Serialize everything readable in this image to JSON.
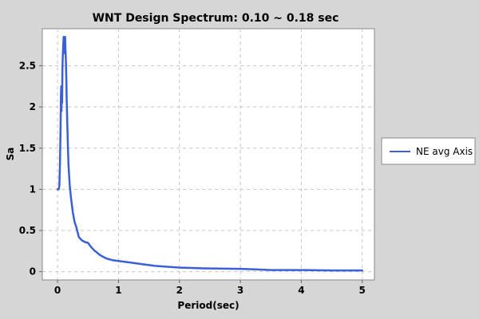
{
  "chart_data": {
    "type": "line",
    "title": "WNT Design Spectrum: 0.10 ~ 0.18 sec",
    "xlabel": "Period(sec)",
    "ylabel": "Sa",
    "xlim": [
      -0.25,
      5.2
    ],
    "ylim": [
      -0.1,
      2.95
    ],
    "xticks": [
      {
        "value": 0,
        "label": "0"
      },
      {
        "value": 1,
        "label": "1"
      },
      {
        "value": 2,
        "label": "2"
      },
      {
        "value": 3,
        "label": "3"
      },
      {
        "value": 4,
        "label": "4"
      },
      {
        "value": 5,
        "label": "5"
      }
    ],
    "yticks": [
      {
        "value": 0,
        "label": "0"
      },
      {
        "value": 0.5,
        "label": "0.5"
      },
      {
        "value": 1,
        "label": "1"
      },
      {
        "value": 1.5,
        "label": "1.5"
      },
      {
        "value": 2,
        "label": "2"
      },
      {
        "value": 2.5,
        "label": "2.5"
      }
    ],
    "grid": true,
    "legend_position": "right",
    "series": [
      {
        "name": "NE avg Axis",
        "color": "#3a5fd8",
        "x": [
          0.0,
          0.02,
          0.03,
          0.04,
          0.05,
          0.055,
          0.06,
          0.065,
          0.07,
          0.075,
          0.08,
          0.085,
          0.09,
          0.1,
          0.11,
          0.12,
          0.125,
          0.13,
          0.135,
          0.14,
          0.145,
          0.15,
          0.16,
          0.17,
          0.18,
          0.2,
          0.22,
          0.25,
          0.28,
          0.3,
          0.35,
          0.4,
          0.45,
          0.5,
          0.55,
          0.6,
          0.7,
          0.8,
          0.9,
          1.0,
          1.2,
          1.4,
          1.6,
          1.8,
          2.0,
          2.4,
          3.0,
          3.2,
          3.5,
          4.0,
          4.5,
          5.0
        ],
        "y": [
          1.0,
          1.0,
          1.05,
          1.3,
          1.75,
          2.1,
          2.25,
          1.95,
          2.22,
          2.05,
          2.45,
          2.6,
          2.7,
          2.85,
          2.8,
          2.65,
          2.85,
          2.7,
          2.6,
          2.45,
          2.3,
          2.1,
          1.8,
          1.5,
          1.3,
          1.05,
          0.9,
          0.72,
          0.6,
          0.56,
          0.42,
          0.38,
          0.36,
          0.35,
          0.3,
          0.26,
          0.2,
          0.16,
          0.14,
          0.13,
          0.11,
          0.09,
          0.07,
          0.06,
          0.05,
          0.04,
          0.035,
          0.03,
          0.02,
          0.02,
          0.015,
          0.015
        ]
      }
    ]
  }
}
